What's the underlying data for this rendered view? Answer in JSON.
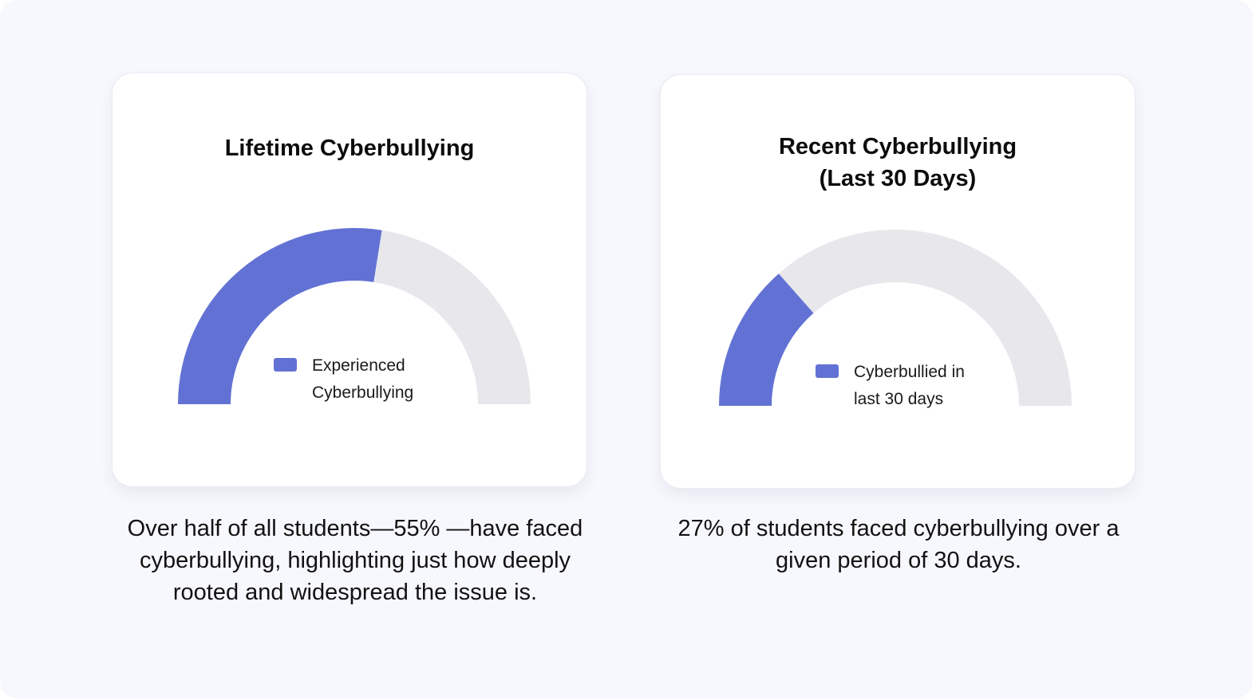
{
  "colors": {
    "accent": "#6272d4",
    "track": "#e8e8ec",
    "background": "#f7f8fd",
    "card": "#ffffff"
  },
  "chart_data": [
    {
      "type": "gauge",
      "title": "Lifetime Cyberbullying",
      "value_percent": 55,
      "range": [
        0,
        100
      ],
      "series": [
        {
          "name": "Experienced Cyberbullying",
          "value": 55,
          "color": "#6272d4"
        }
      ],
      "legend": "center"
    },
    {
      "type": "gauge",
      "title": "Recent Cyberbullying\n(Last 30 Days)",
      "value_percent": 27,
      "range": [
        0,
        100
      ],
      "series": [
        {
          "name": "Cyberbullied in last 30 days",
          "value": 27,
          "color": "#6272d4"
        }
      ],
      "legend": "center"
    }
  ],
  "captions": [
    "Over half of all students—55% —have faced cyberbullying, highlighting just how deeply rooted and widespread the issue is.",
    "27% of students faced cyberbullying over a given period of 30 days."
  ]
}
